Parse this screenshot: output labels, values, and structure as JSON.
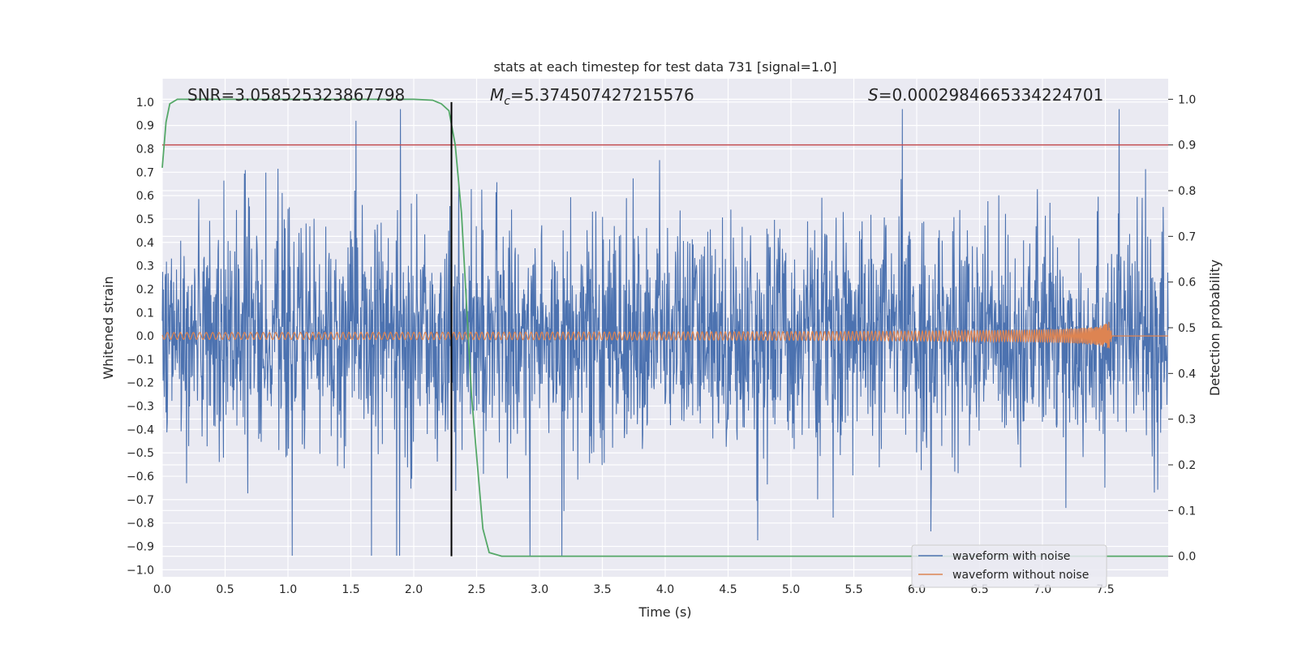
{
  "chart_data": {
    "type": "line",
    "title": "stats at each timestep for test data 731 [signal=1.0]",
    "xlabel": "Time (s)",
    "ylabel_left": "Whitened strain",
    "ylabel_right": "Detection probability",
    "xlim": [
      0,
      8
    ],
    "ylim_left": [
      -1.03,
      1.1
    ],
    "ylim_right": [
      -0.045,
      1.045
    ],
    "x_ticks": [
      "0.0",
      "0.5",
      "1.0",
      "1.5",
      "2.0",
      "2.5",
      "3.0",
      "3.5",
      "4.0",
      "4.5",
      "5.0",
      "5.5",
      "6.0",
      "6.5",
      "7.0",
      "7.5"
    ],
    "y_ticks_left": [
      "1.0",
      "0.9",
      "0.8",
      "0.7",
      "0.6",
      "0.5",
      "0.4",
      "0.3",
      "0.2",
      "0.1",
      "0.0",
      "−0.1",
      "−0.2",
      "−0.3",
      "−0.4",
      "−0.5",
      "−0.6",
      "−0.7",
      "−0.8",
      "−0.9",
      "−1.0"
    ],
    "y_ticks_right": [
      "1.0",
      "0.9",
      "0.8",
      "0.7",
      "0.6",
      "0.5",
      "0.4",
      "0.3",
      "0.2",
      "0.1",
      "0.0"
    ],
    "annotations": {
      "snr": "SNR=3.058525323867798",
      "mc_var": "M",
      "mc_sub": "c",
      "mc_value": "=5.374507427215576",
      "s_var": "S",
      "s_value": "=0.0002984665334224701"
    },
    "threshold_right": 0.9,
    "detection_time": 2.3,
    "series": [
      {
        "name": "waveform with noise",
        "color": "#4c72b0",
        "axis": "left",
        "noise_amplitude": 0.62,
        "t_end": 8.0
      },
      {
        "name": "waveform without noise",
        "color": "#dd8452",
        "axis": "left",
        "t_end": 7.55,
        "peak_amplitude": 0.07
      },
      {
        "name": "detection probability",
        "color": "#55a868",
        "axis": "right",
        "x": [
          0.0,
          0.03,
          0.06,
          0.12,
          1.0,
          2.0,
          2.15,
          2.22,
          2.28,
          2.33,
          2.38,
          2.42,
          2.46,
          2.5,
          2.55,
          2.6,
          2.7,
          3.0,
          8.0
        ],
        "y": [
          0.85,
          0.95,
          0.99,
          1.0,
          1.0,
          1.0,
          0.998,
          0.99,
          0.975,
          0.9,
          0.75,
          0.55,
          0.35,
          0.22,
          0.06,
          0.008,
          0.0,
          0.0,
          0.0
        ]
      }
    ],
    "threshold_color": "#c44e52",
    "detection_line_color": "#000000",
    "legend_position": "lower right"
  }
}
